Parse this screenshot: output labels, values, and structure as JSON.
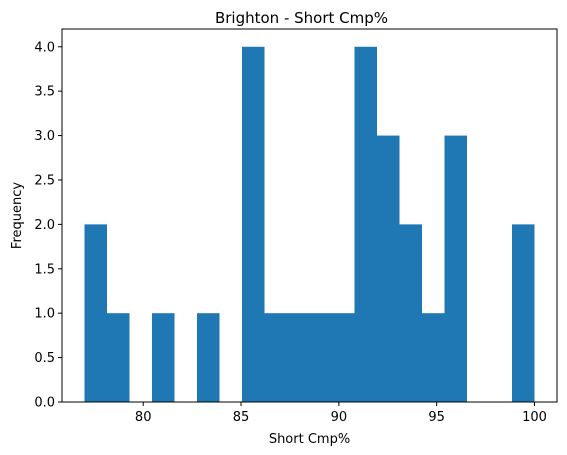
{
  "chart_data": {
    "type": "bar",
    "title": "Brighton - Short Cmp%",
    "xlabel": "Short Cmp%",
    "ylabel": "Frequency",
    "xlim": [
      75.85,
      101.15
    ],
    "ylim": [
      0,
      4.2
    ],
    "grid": false,
    "bar_color": "#1f77b4",
    "bins": [
      {
        "start": 77.0,
        "end": 78.15,
        "count": 2
      },
      {
        "start": 78.15,
        "end": 79.3,
        "count": 1
      },
      {
        "start": 79.3,
        "end": 80.45,
        "count": 0
      },
      {
        "start": 80.45,
        "end": 81.6,
        "count": 1
      },
      {
        "start": 81.6,
        "end": 82.75,
        "count": 0
      },
      {
        "start": 82.75,
        "end": 83.9,
        "count": 1
      },
      {
        "start": 83.9,
        "end": 85.05,
        "count": 0
      },
      {
        "start": 85.05,
        "end": 86.2,
        "count": 4
      },
      {
        "start": 86.2,
        "end": 87.35,
        "count": 1
      },
      {
        "start": 87.35,
        "end": 88.5,
        "count": 1
      },
      {
        "start": 88.5,
        "end": 89.65,
        "count": 1
      },
      {
        "start": 89.65,
        "end": 90.8,
        "count": 1
      },
      {
        "start": 90.8,
        "end": 91.95,
        "count": 4
      },
      {
        "start": 91.95,
        "end": 93.1,
        "count": 3
      },
      {
        "start": 93.1,
        "end": 94.25,
        "count": 2
      },
      {
        "start": 94.25,
        "end": 95.4,
        "count": 1
      },
      {
        "start": 95.4,
        "end": 96.55,
        "count": 3
      },
      {
        "start": 96.55,
        "end": 97.7,
        "count": 0
      },
      {
        "start": 97.7,
        "end": 98.85,
        "count": 0
      },
      {
        "start": 98.85,
        "end": 100.0,
        "count": 2
      }
    ],
    "x_ticks": [
      {
        "value": 80,
        "label": "80"
      },
      {
        "value": 85,
        "label": "85"
      },
      {
        "value": 90,
        "label": "90"
      },
      {
        "value": 95,
        "label": "95"
      },
      {
        "value": 100,
        "label": "100"
      }
    ],
    "y_ticks": [
      {
        "value": 0.0,
        "label": "0.0"
      },
      {
        "value": 0.5,
        "label": "0.5"
      },
      {
        "value": 1.0,
        "label": "1.0"
      },
      {
        "value": 1.5,
        "label": "1.5"
      },
      {
        "value": 2.0,
        "label": "2.0"
      },
      {
        "value": 2.5,
        "label": "2.5"
      },
      {
        "value": 3.0,
        "label": "3.0"
      },
      {
        "value": 3.5,
        "label": "3.5"
      },
      {
        "value": 4.0,
        "label": "4.0"
      }
    ]
  }
}
